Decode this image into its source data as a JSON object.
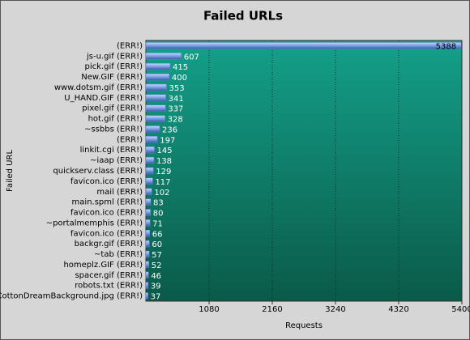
{
  "chart_data": {
    "type": "bar",
    "orientation": "horizontal",
    "title": "Failed URLs",
    "x_label": "Requests",
    "y_label": "Failed URL",
    "categories": [
      "(ERR!)",
      "js-u.gif (ERR!)",
      "pick.gif (ERR!)",
      "New.GIF (ERR!)",
      "www.dotsm.gif (ERR!)",
      "U_HAND.GIF (ERR!)",
      "pixel.gif (ERR!)",
      "hot.gif (ERR!)",
      "~ssbbs (ERR!)",
      "(ERR!)",
      "linkit.cgi (ERR!)",
      "~iaap (ERR!)",
      "quickserv.class (ERR!)",
      "favicon.ico (ERR!)",
      "mail (ERR!)",
      "main.spml (ERR!)",
      "favicon.ico (ERR!)",
      "~portalmemphis (ERR!)",
      "favicon.ico (ERR!)",
      "backgr.gif (ERR!)",
      "~tab (ERR!)",
      "homeplz.GIF (ERR!)",
      "spacer.gif (ERR!)",
      "robots.txt (ERR!)",
      "CottonDreamBackground.jpg (ERR!)"
    ],
    "values": [
      5388,
      607,
      415,
      400,
      353,
      341,
      337,
      328,
      236,
      197,
      145,
      138,
      129,
      117,
      102,
      83,
      80,
      71,
      66,
      60,
      57,
      52,
      46,
      39,
      37
    ],
    "color": "#5a7fd0",
    "xlim": [
      0,
      5400
    ],
    "xticks": [
      1080,
      2160,
      3240,
      4320,
      5400
    ],
    "grid": true
  }
}
